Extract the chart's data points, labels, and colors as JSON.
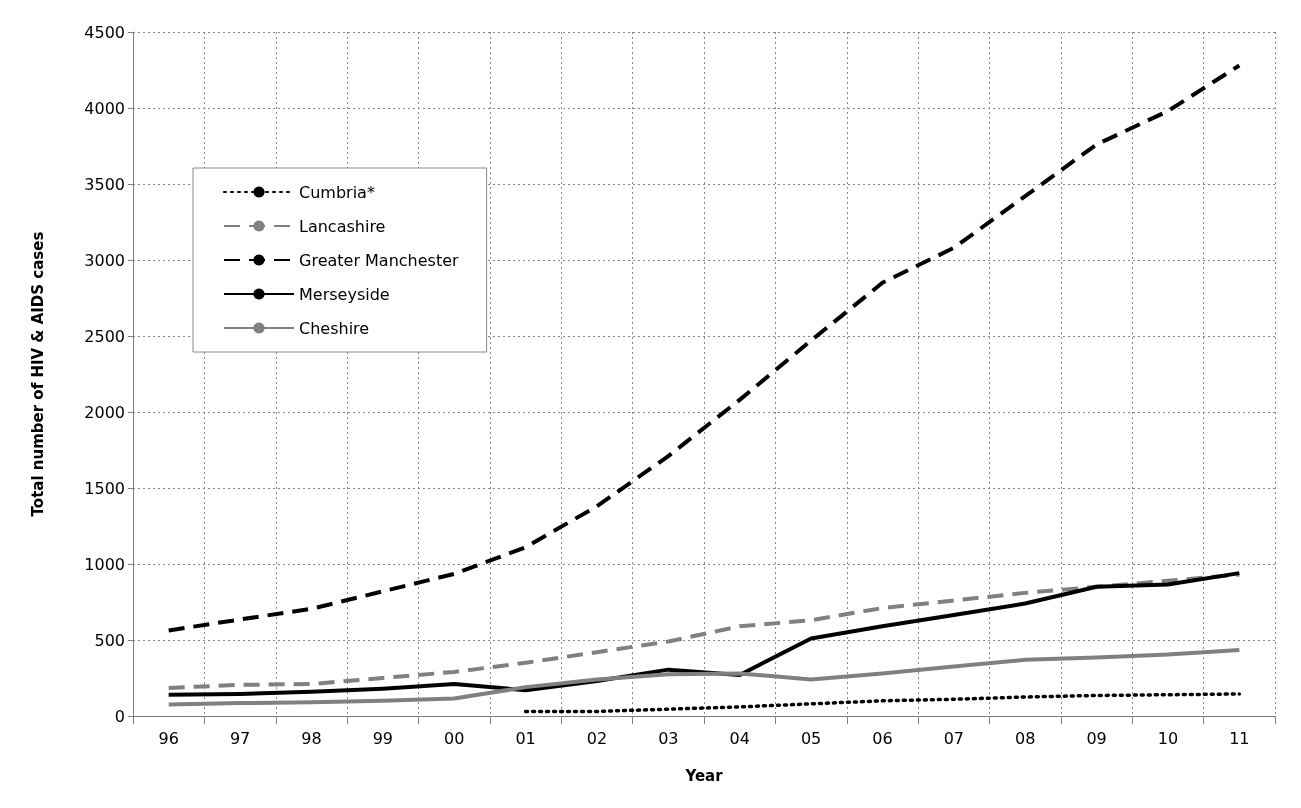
{
  "chart_data": {
    "type": "line",
    "xlabel": "Year",
    "ylabel": "Total number of HIV & AIDS cases",
    "categories": [
      "96",
      "97",
      "98",
      "99",
      "00",
      "01",
      "02",
      "03",
      "04",
      "05",
      "06",
      "07",
      "08",
      "09",
      "10",
      "11"
    ],
    "series": [
      {
        "name": "Cumbria*",
        "color": "#000000",
        "line_style": "dotted",
        "values": [
          null,
          null,
          null,
          null,
          null,
          30,
          30,
          45,
          60,
          80,
          100,
          110,
          125,
          135,
          140,
          145
        ]
      },
      {
        "name": "Lancashire",
        "color": "#808080",
        "line_style": "dashed",
        "values": [
          185,
          205,
          210,
          250,
          290,
          350,
          420,
          490,
          590,
          630,
          710,
          760,
          810,
          850,
          890,
          930
        ]
      },
      {
        "name": "Greater Manchester",
        "color": "#000000",
        "line_style": "dashed",
        "values": [
          563,
          635,
          705,
          820,
          935,
          1110,
          1380,
          1710,
          2080,
          2470,
          2850,
          3080,
          3420,
          3760,
          3980,
          4280
        ]
      },
      {
        "name": "Merseyside",
        "color": "#000000",
        "line_style": "solid",
        "values": [
          140,
          145,
          160,
          180,
          210,
          170,
          230,
          305,
          270,
          510,
          590,
          665,
          740,
          850,
          865,
          940
        ]
      },
      {
        "name": "Cheshire",
        "color": "#808080",
        "line_style": "solid",
        "values": [
          75,
          85,
          90,
          100,
          115,
          190,
          240,
          275,
          280,
          240,
          280,
          325,
          370,
          385,
          405,
          435
        ]
      }
    ],
    "ylim": [
      0,
      4500
    ],
    "yticks": [
      0,
      500,
      1000,
      1500,
      2000,
      2500,
      3000,
      3500,
      4000,
      4500
    ],
    "grid": true,
    "legend": "top left",
    "marker": "none"
  }
}
